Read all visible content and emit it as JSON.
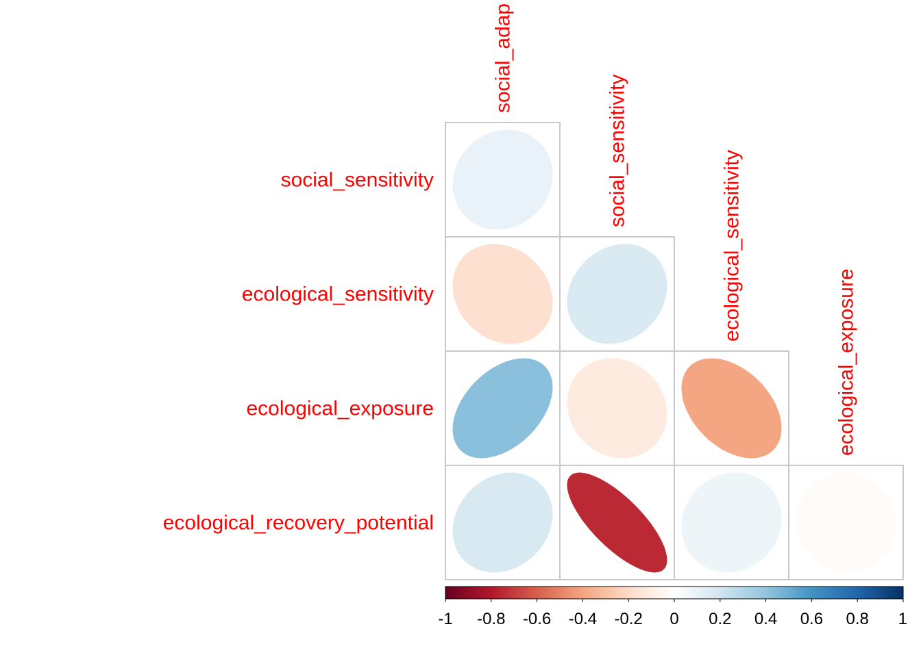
{
  "chart_data": {
    "type": "heatmap",
    "subtype": "correlation-ellipse-lower-triangle",
    "title": "",
    "column_labels": [
      "social_adap",
      "social_sensitivity",
      "ecological_sensitivity",
      "ecological_exposure"
    ],
    "row_labels": [
      "social_sensitivity",
      "ecological_sensitivity",
      "ecological_exposure",
      "ecological_recovery_potential"
    ],
    "matrix": [
      [
        0.1,
        null,
        null,
        null
      ],
      [
        -0.17,
        0.16,
        null,
        null
      ],
      [
        0.42,
        -0.11,
        -0.4,
        null
      ],
      [
        0.17,
        -0.75,
        0.08,
        -0.02
      ]
    ],
    "colorbar": {
      "range": [
        -1,
        1
      ],
      "ticks": [
        -1,
        -0.8,
        -0.6,
        -0.4,
        -0.2,
        0,
        0.2,
        0.4,
        0.6,
        0.8,
        1
      ],
      "tick_labels": [
        "-1",
        "-0.8",
        "-0.6",
        "-0.4",
        "-0.2",
        "0",
        "0.2",
        "0.4",
        "0.6",
        "0.8",
        "1"
      ],
      "palette": [
        "#67001F",
        "#B2182B",
        "#D6604D",
        "#F4A582",
        "#FDDBC7",
        "#FFFFFF",
        "#D1E5F0",
        "#92C5DE",
        "#4393C3",
        "#2166AC",
        "#053061"
      ]
    },
    "colors": {
      "label": "#FF0000",
      "grid": "#C8C8C8"
    }
  }
}
